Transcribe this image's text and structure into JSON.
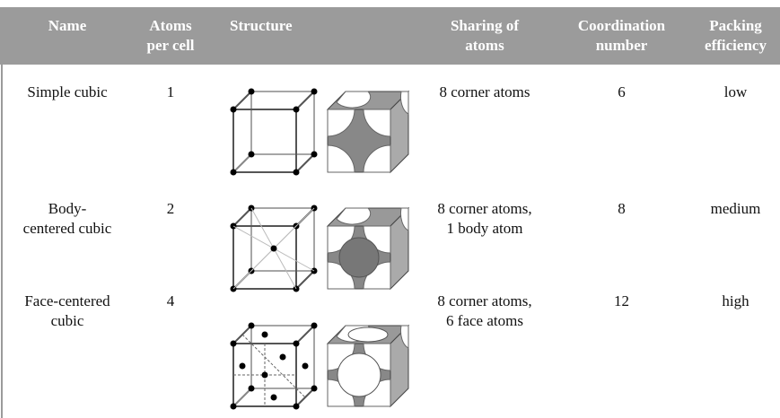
{
  "header": [
    [
      "Name"
    ],
    [
      "Atoms",
      "per cell"
    ],
    [
      "Structure"
    ],
    [
      "Sharing of",
      "atoms"
    ],
    [
      "Coordination",
      "number"
    ],
    [
      "Packing",
      "efficiency"
    ]
  ],
  "rows": [
    {
      "name": [
        "Simple cubic"
      ],
      "atoms": "1",
      "sharing": [
        "8 corner atoms"
      ],
      "coordination": "6",
      "packing": "low"
    },
    {
      "name": [
        "Body-",
        "centered cubic"
      ],
      "atoms": "2",
      "sharing": [
        "8 corner atoms,",
        "1 body atom"
      ],
      "coordination": "8",
      "packing": "medium"
    },
    {
      "name": [
        "Face-centered",
        "cubic"
      ],
      "atoms": "4",
      "sharing": [
        "8 corner atoms,",
        "6 face atoms"
      ],
      "coordination": "12",
      "packing": "high"
    }
  ]
}
